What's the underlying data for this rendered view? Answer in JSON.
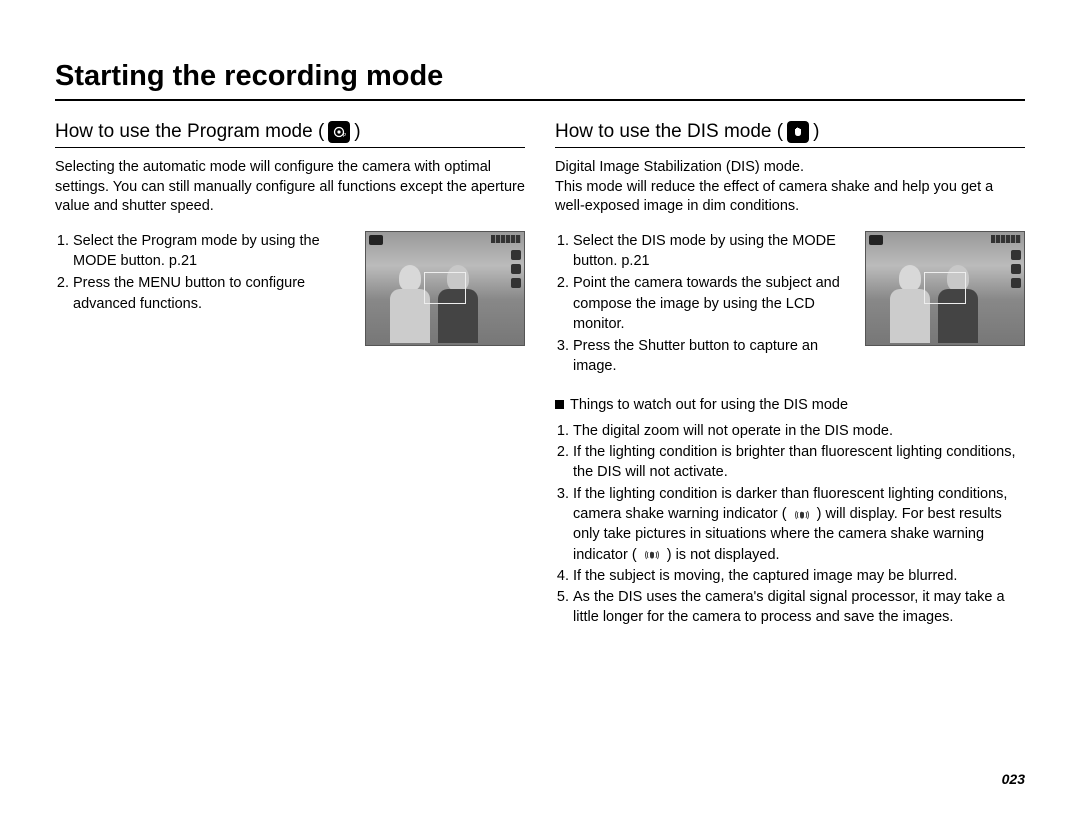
{
  "page_number": "023",
  "main_title": "Starting the recording mode",
  "left": {
    "title_prefix": "How to use the Program mode (",
    "title_suffix": " )",
    "mode_icon_label": "P",
    "intro": "Selecting the automatic mode will configure the camera with optimal settings. You can still manually configure all functions except the aperture value and shutter speed.",
    "steps": [
      "Select the Program mode by using the MODE button. p.21",
      "Press the MENU button to configure advanced functions."
    ]
  },
  "right": {
    "title_prefix": "How to use the DIS mode (",
    "title_suffix": " )",
    "mode_icon_label": "✋",
    "intro": "Digital Image Stabilization (DIS) mode.\nThis mode will reduce the effect of camera shake and help you get a well-exposed image in dim conditions.",
    "steps": [
      "Select the DIS mode by using the MODE button. p.21",
      "Point the camera towards the subject and compose the image by using the LCD monitor.",
      "Press the Shutter button to capture an image."
    ],
    "notes_heading": "Things to watch out for using the DIS mode",
    "shake_icon": "((🖐))",
    "notes": [
      "The digital zoom will not operate in the DIS mode.",
      "If the lighting condition is brighter than fluorescent lighting conditions, the DIS will not activate.",
      "If the lighting condition is darker than fluorescent lighting conditions, camera shake warning indicator ( {shake} ) will display. For best results only take pictures in situations where the camera shake warning indicator ( {shake} ) is not displayed.",
      "If the subject is moving, the captured image may be blurred.",
      "As the DIS uses the camera's digital signal processor, it may take a little longer for the camera to process and save the images."
    ]
  }
}
